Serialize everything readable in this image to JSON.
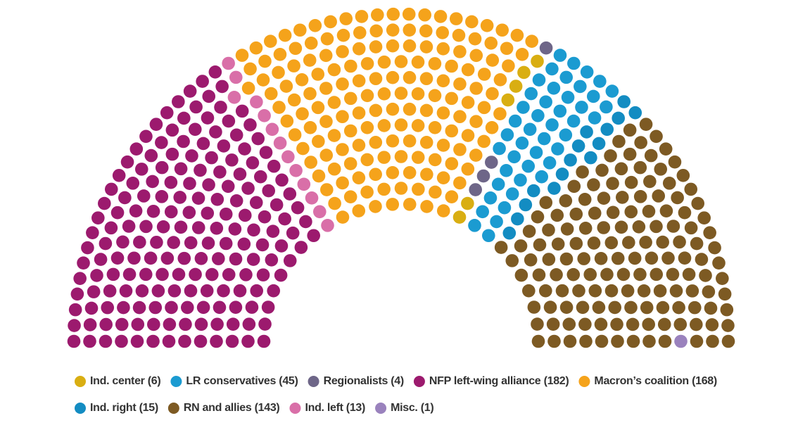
{
  "chart_data": {
    "type": "parliament",
    "series": [
      {
        "name": "Ind. center",
        "color": "#d9ae12",
        "values": [
          6
        ],
        "value_labels": [
          "(6)"
        ]
      },
      {
        "name": "LR conservatives",
        "color": "#1b9bd1",
        "values": [
          45
        ],
        "value_labels": [
          "(45)"
        ]
      },
      {
        "name": "Regionalists",
        "color": "#6e6688",
        "values": [
          4
        ],
        "value_labels": [
          "(4)"
        ]
      },
      {
        "name": "NFP left-wing alliance",
        "color": "#9c1a6e",
        "values": [
          182
        ],
        "value_labels": [
          "(182)"
        ]
      },
      {
        "name": "Macron’s coalition",
        "color": "#f5a31b",
        "values": [
          168
        ],
        "value_labels": [
          "(168)"
        ]
      },
      {
        "name": "Ind. right",
        "color": "#138cc2",
        "values": [
          15
        ],
        "value_labels": [
          "(15)"
        ]
      },
      {
        "name": "RN and allies",
        "color": "#7d5a23",
        "values": [
          143
        ],
        "value_labels": [
          "(143)"
        ]
      },
      {
        "name": "Ind. left",
        "color": "#d96fa8",
        "values": [
          13
        ],
        "value_labels": [
          "(13)"
        ]
      },
      {
        "name": "Misc.",
        "color": "#9a82bd",
        "values": [
          1
        ],
        "value_labels": [
          "(1)"
        ]
      }
    ]
  }
}
